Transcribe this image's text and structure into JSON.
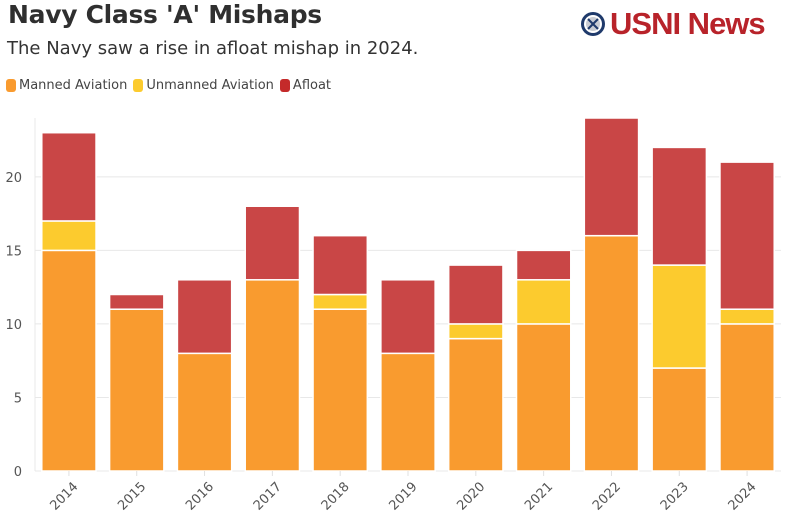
{
  "header": {
    "title": "Navy Class 'A' Mishaps",
    "subtitle": "The Navy saw a rise in afloat mishap in 2024.",
    "logo_text": "USNI News",
    "logo_icon": "usni-seal-icon"
  },
  "chart_data": {
    "type": "bar",
    "stacked": true,
    "title": "Navy Class 'A' Mishaps",
    "subtitle": "The Navy saw a rise in afloat mishap in 2024.",
    "xlabel": "",
    "ylabel": "",
    "categories": [
      "2014",
      "2015",
      "2016",
      "2017",
      "2018",
      "2019",
      "2020",
      "2021",
      "2022",
      "2023",
      "2024"
    ],
    "series": [
      {
        "name": "Manned Aviation",
        "color": "#f99b2f",
        "values": [
          15,
          11,
          8,
          13,
          11,
          8,
          9,
          10,
          16,
          7,
          10
        ]
      },
      {
        "name": "Unmanned Aviation",
        "color": "#fccb2e",
        "values": [
          2,
          0,
          0,
          0,
          1,
          0,
          1,
          3,
          0,
          7,
          1
        ]
      },
      {
        "name": "Afloat",
        "color": "#c94646",
        "values": [
          6,
          1,
          5,
          5,
          4,
          5,
          4,
          2,
          8,
          8,
          10
        ]
      }
    ],
    "ylim": [
      0,
      24
    ],
    "yticks": [
      0,
      5,
      10,
      15,
      20
    ],
    "grid": true,
    "legend_position": "top-left"
  }
}
